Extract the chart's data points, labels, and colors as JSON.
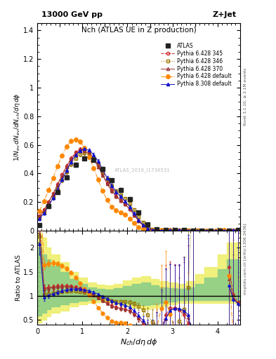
{
  "title_top": "13000 GeV pp",
  "title_right": "Z+Jet",
  "plot_title": "Nch (ATLAS UE in Z production)",
  "xlabel": "N_{ch}/d\\eta d\\phi",
  "ylabel_main": "1/N_{ev} dN_{ev}/dN_{ch}/d\\eta d\\phi",
  "ylabel_ratio": "Ratio to ATLAS",
  "right_label_top": "Rivet 3.1.10, ≥ 2.1M events",
  "right_label_bot": "mcplots.cern.ch [arXiv:1306.3436]",
  "watermark": "ATLAS_2019_I1736531",
  "xlim": [
    0,
    4.5
  ],
  "ylim_main": [
    0,
    1.45
  ],
  "ylim_ratio": [
    0.4,
    2.35
  ],
  "yticks_main": [
    0.0,
    0.2,
    0.4,
    0.6,
    0.8,
    1.0,
    1.2,
    1.4
  ],
  "yticks_ratio": [
    0.5,
    1.0,
    1.5,
    2.0
  ],
  "colors": {
    "ATLAS": "#222222",
    "Pythia 6.428 345": "#cc2222",
    "Pythia 6.428 346": "#997700",
    "Pythia 6.428 370": "#993333",
    "Pythia 6.428 default": "#ff8800",
    "Pythia 8.308 default": "#1111cc"
  },
  "markers": {
    "ATLAS": "s",
    "Pythia 6.428 345": "o",
    "Pythia 6.428 346": "s",
    "Pythia 6.428 370": "^",
    "Pythia 6.428 default": "o",
    "Pythia 8.308 default": "^"
  },
  "linestyles": {
    "ATLAS": "none",
    "Pythia 6.428 345": "--",
    "Pythia 6.428 346": ":",
    "Pythia 6.428 370": "-",
    "Pythia 6.428 default": "-.",
    "Pythia 8.308 default": "-"
  },
  "filled": {
    "ATLAS": true,
    "Pythia 6.428 345": false,
    "Pythia 6.428 346": false,
    "Pythia 6.428 370": false,
    "Pythia 6.428 default": true,
    "Pythia 8.308 default": true
  },
  "markersizes": {
    "ATLAS": 4,
    "Pythia 6.428 345": 3,
    "Pythia 6.428 346": 3,
    "Pythia 6.428 370": 3,
    "Pythia 6.428 default": 4,
    "Pythia 8.308 default": 3
  }
}
